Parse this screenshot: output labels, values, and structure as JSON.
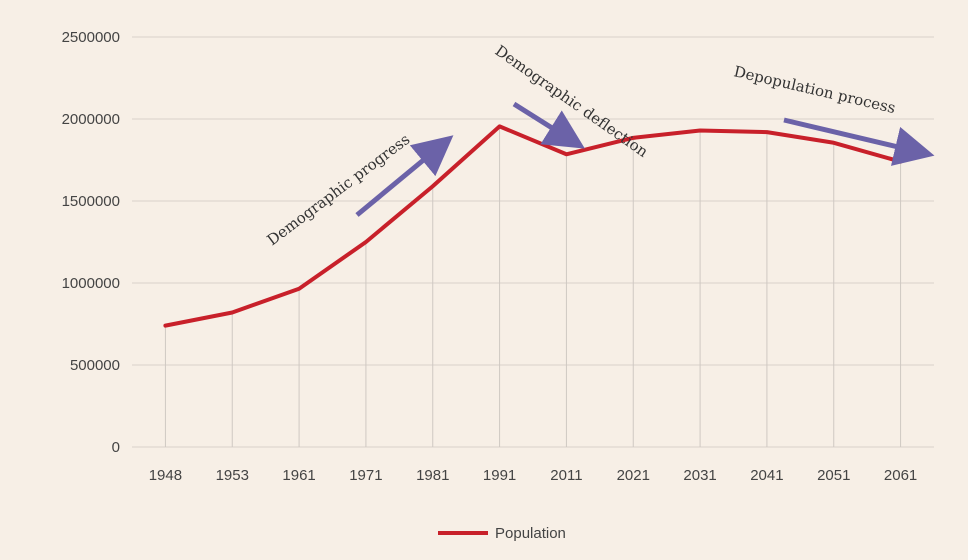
{
  "chart_data": {
    "type": "line",
    "title": "",
    "xlabel": "",
    "ylabel": "",
    "categories": [
      "1948",
      "1953",
      "1961",
      "1971",
      "1981",
      "1991",
      "2011",
      "2021",
      "2031",
      "2041",
      "2051",
      "2061"
    ],
    "series": [
      {
        "name": "Population",
        "color": "#c8202a",
        "values": [
          740000,
          820000,
          965000,
          1250000,
          1590000,
          1955000,
          1785000,
          1885000,
          1930000,
          1920000,
          1855000,
          1740000
        ]
      }
    ],
    "ylim": [
      0,
      2500000
    ],
    "yticks": [
      "0",
      "500000",
      "1000000",
      "1500000",
      "2000000",
      "2500000"
    ],
    "grid": true,
    "legend": "bottom-center",
    "annotations": [
      {
        "text": "Demographic progress",
        "arrow_color": "#6b62a8"
      },
      {
        "text": "Demographic deflection",
        "arrow_color": "#6b62a8"
      },
      {
        "text": "Depopulation  process",
        "arrow_color": "#6b62a8"
      }
    ]
  }
}
